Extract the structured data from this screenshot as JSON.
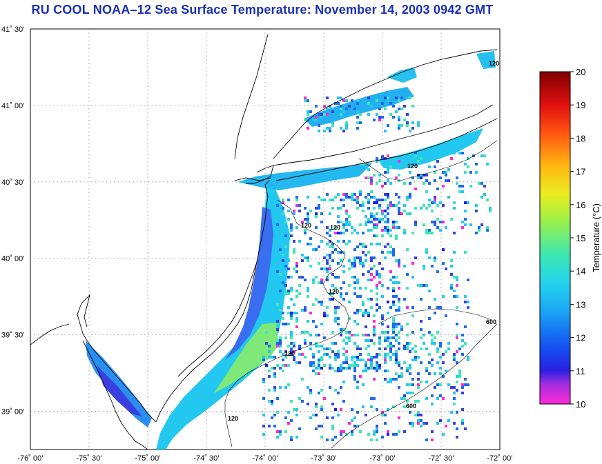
{
  "title": "RU COOL  NOAA–12  Sea Surface Temperature:  November 14, 2003 0942 GMT",
  "map": {
    "lat_ticks": [
      "41˚ 30’",
      "41˚ 00’",
      "40˚ 30’",
      "40˚ 00’",
      "39˚ 30’",
      "39˚ 00’"
    ],
    "lon_ticks": [
      "-76˚ 00’",
      "-75˚ 30’",
      "-75˚ 00’",
      "-74˚ 30’",
      "-74˚ 00’",
      "-73˚ 30’",
      "-73˚ 00’",
      "-72˚ 30’",
      "-72˚ 00’"
    ],
    "lon_range": [
      -76.0,
      -72.0
    ],
    "lat_range": [
      38.75,
      41.5
    ],
    "contour_labels": [
      "120",
      "120",
      "120",
      "120",
      "120",
      "120",
      "120",
      "600",
      "600"
    ]
  },
  "colorbar": {
    "label": "Temperature (°C)",
    "ticks": [
      "20",
      "19",
      "18",
      "17",
      "16",
      "15",
      "14",
      "13",
      "12",
      "11",
      "10"
    ],
    "range": [
      10,
      20
    ],
    "stops": [
      "#ff2ad4",
      "#6a3bd8",
      "#1420e8",
      "#1a6cf0",
      "#22c8f0",
      "#3ee6b8",
      "#8ef050",
      "#e8ee22",
      "#ffb010",
      "#ff5a10",
      "#e01010",
      "#8a0000"
    ]
  }
}
